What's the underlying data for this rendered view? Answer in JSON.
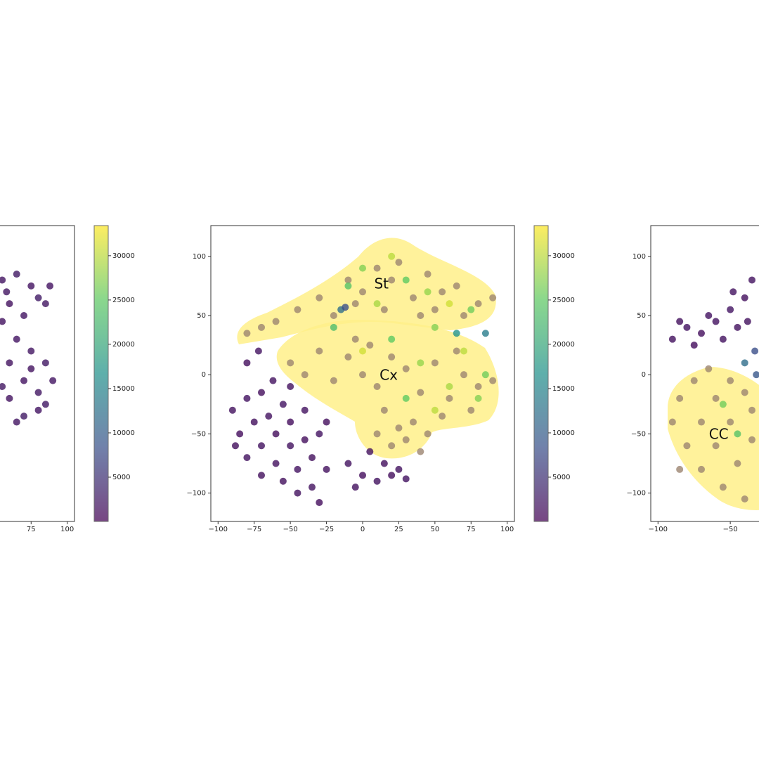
{
  "chart_data": [
    {
      "type": "scatter",
      "xlim": [
        -105,
        105
      ],
      "ylim": [
        -124,
        126
      ],
      "xticks": [
        75,
        100
      ],
      "clim": [
        0,
        33400
      ],
      "cticks": [
        5000,
        10000,
        15000,
        20000,
        25000,
        30000
      ],
      "series": [
        {
          "x": [
            55,
            65,
            75,
            85,
            60,
            70,
            80,
            55,
            65,
            75,
            85,
            60,
            70,
            80,
            90,
            60,
            70,
            80,
            55,
            75,
            65,
            85,
            88,
            58
          ],
          "y": [
            80,
            85,
            75,
            60,
            60,
            50,
            65,
            45,
            30,
            20,
            10,
            10,
            -5,
            -15,
            -5,
            -20,
            -35,
            -30,
            -10,
            5,
            -40,
            -25,
            75,
            70
          ],
          "c": [
            2000,
            2500,
            1800,
            2200,
            1500,
            2000,
            2600,
            1700,
            1900,
            2100,
            2400,
            1600,
            1800,
            2300,
            2000,
            1700,
            2500,
            1900,
            2200,
            1600,
            2000,
            2400,
            1800,
            2100
          ]
        }
      ]
    },
    {
      "type": "scatter",
      "xlim": [
        -105,
        105
      ],
      "ylim": [
        -124,
        126
      ],
      "xticks": [
        {
          "value": -100,
          "label": "−100"
        },
        {
          "value": -75,
          "label": "−75"
        },
        {
          "value": -50,
          "label": "−50"
        },
        {
          "value": -25,
          "label": "−25"
        },
        0,
        25,
        50,
        75,
        100
      ],
      "yticks": [
        {
          "value": -100,
          "label": "−100"
        },
        {
          "value": -50,
          "label": "−50"
        },
        0,
        50,
        100
      ],
      "clim": [
        0,
        33400
      ],
      "cticks": [
        5000,
        10000,
        15000,
        20000,
        25000,
        30000
      ],
      "annotations": [
        {
          "text": "St",
          "x": 13,
          "y": 76
        },
        {
          "text": "Cx",
          "x": 18,
          "y": -1
        }
      ],
      "series": [
        {
          "x": [
            -90,
            -85,
            -80,
            -75,
            -70,
            -70,
            -65,
            -60,
            -60,
            -55,
            -55,
            -50,
            -50,
            -45,
            -45,
            -40,
            -40,
            -35,
            -35,
            -30,
            -30,
            -25,
            -25,
            -80,
            -70,
            -62,
            -50,
            -80,
            -72,
            -88,
            -10,
            0,
            5,
            10,
            15,
            20,
            25,
            -5,
            30
          ],
          "y": [
            -30,
            -50,
            -20,
            -40,
            -60,
            -15,
            -35,
            -75,
            -50,
            -25,
            -90,
            -60,
            -40,
            -80,
            -100,
            -55,
            -30,
            -70,
            -95,
            -108,
            -50,
            -80,
            -40,
            -70,
            -85,
            -5,
            -10,
            10,
            20,
            -60,
            -75,
            -85,
            -65,
            -90,
            -75,
            -85,
            -80,
            -95,
            -88
          ],
          "c": [
            1500,
            1200,
            1800,
            1400,
            1600,
            1300,
            1700,
            1500,
            1100,
            1900,
            1400,
            1600,
            1200,
            1800,
            1500,
            1300,
            1700,
            1400,
            1600,
            1200,
            1800,
            1500,
            1300,
            1700,
            1400,
            1600,
            1500,
            1300,
            1800,
            1400,
            1600,
            1200,
            1500,
            1700,
            1400,
            1300,
            1600,
            1500,
            1800
          ]
        },
        {
          "color": "#9c8470",
          "x": [
            -80,
            -70,
            -60,
            -45,
            -30,
            -20,
            -10,
            0,
            10,
            20,
            25,
            35,
            45,
            55,
            65,
            80,
            90,
            -5,
            15,
            40,
            70,
            50,
            -50,
            -40,
            -30,
            -20,
            -10,
            0,
            10,
            20,
            30,
            40,
            50,
            60,
            70,
            80,
            90,
            -5,
            15,
            35,
            55,
            75,
            10,
            20,
            30,
            40,
            25,
            45,
            5,
            65
          ],
          "y": [
            35,
            40,
            45,
            55,
            65,
            50,
            80,
            70,
            90,
            80,
            95,
            65,
            85,
            70,
            75,
            60,
            65,
            60,
            55,
            50,
            50,
            55,
            10,
            0,
            20,
            -5,
            15,
            0,
            -10,
            15,
            5,
            -15,
            10,
            -20,
            0,
            -10,
            -5,
            30,
            -30,
            -40,
            -35,
            -30,
            -50,
            -60,
            -55,
            -65,
            -45,
            -50,
            25,
            20
          ]
        },
        {
          "x": [
            0,
            20,
            30,
            45,
            60,
            75,
            -10,
            10,
            50,
            70,
            85,
            40,
            20,
            0,
            -20,
            60,
            80,
            30,
            50,
            -15,
            -12,
            85,
            65
          ],
          "y": [
            90,
            100,
            80,
            70,
            60,
            55,
            75,
            60,
            40,
            20,
            0,
            10,
            30,
            20,
            40,
            -10,
            -20,
            -20,
            -30,
            55,
            57,
            35,
            35
          ],
          "c": [
            27000,
            30000,
            25000,
            28000,
            31000,
            26000,
            24000,
            29000,
            27000,
            30000,
            26000,
            28000,
            25000,
            31000,
            23000,
            29000,
            27000,
            25000,
            30000,
            12000,
            8000,
            14000,
            17000
          ]
        }
      ]
    },
    {
      "type": "scatter",
      "xlim": [
        -105,
        105
      ],
      "ylim": [
        -124,
        126
      ],
      "xticks": [
        {
          "value": -100,
          "label": "−100"
        },
        {
          "value": -50,
          "label": "−50"
        }
      ],
      "yticks": [
        {
          "value": -100,
          "label": "−100"
        },
        {
          "value": -50,
          "label": "−50"
        },
        0,
        50,
        100
      ],
      "clim": [
        0,
        33400
      ],
      "annotations": [
        {
          "text": "CC",
          "x": -58,
          "y": -51
        }
      ],
      "series": [
        {
          "x": [
            -90,
            -80,
            -70,
            -60,
            -50,
            -40,
            -35,
            -45,
            -55,
            -75,
            -65,
            -38,
            -33,
            -40,
            -32,
            -85,
            -48
          ],
          "y": [
            30,
            40,
            35,
            45,
            55,
            65,
            80,
            40,
            30,
            25,
            50,
            45,
            20,
            10,
            0,
            45,
            70
          ],
          "c": [
            1500,
            1800,
            1300,
            1600,
            1900,
            1400,
            1700,
            1500,
            1600,
            1200,
            1800,
            1500,
            8000,
            12000,
            9000,
            1400,
            1700
          ]
        },
        {
          "color": "#9c8470",
          "x": [
            -90,
            -85,
            -80,
            -75,
            -70,
            -70,
            -60,
            -60,
            -55,
            -50,
            -50,
            -45,
            -40,
            -35,
            -35,
            -85,
            -65,
            -40
          ],
          "y": [
            -40,
            -20,
            -60,
            -5,
            -40,
            -80,
            -20,
            -60,
            -95,
            -5,
            -40,
            -75,
            -105,
            -30,
            -55,
            -80,
            5,
            -15
          ]
        },
        {
          "x": [
            -55,
            -45
          ],
          "y": [
            -25,
            -50
          ],
          "c": [
            26000,
            24000
          ]
        }
      ]
    }
  ]
}
